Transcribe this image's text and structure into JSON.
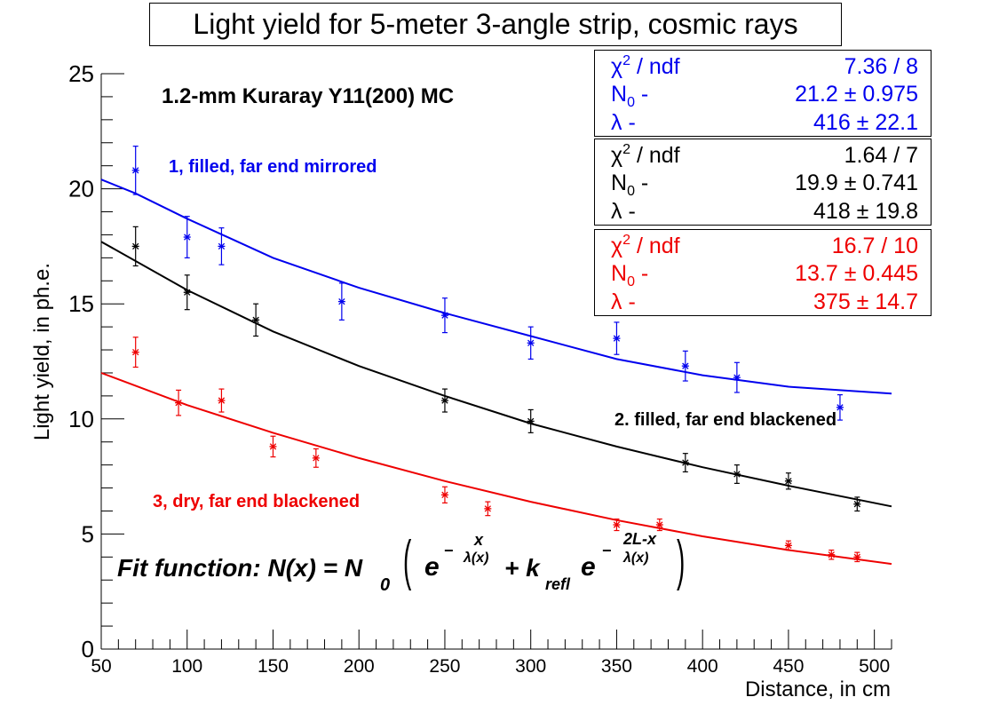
{
  "title": "Light yield for 5-meter 3-angle strip, cosmic rays",
  "annotations": {
    "material": "1.2-mm Kuraray Y11(200) MC",
    "curve1": "1, filled, far end mirrored",
    "curve2": "2. filled, far end blackened",
    "curve3": "3, dry, far end blackened"
  },
  "fit_formula": {
    "prefix": "Fit function: N(x) = N",
    "sub0": "0",
    "e1": "e",
    "minus1": "−",
    "frac1_num": "x",
    "frac1_den": "λ(x)",
    "plus_k": "+ k",
    "k_sub": "refl",
    "e2": "e",
    "minus2": "−",
    "frac2_num": "2L-x",
    "frac2_den": "λ(x)",
    "paren_open": "(",
    "paren_close": ")"
  },
  "stats": [
    {
      "color": "#0000ee",
      "chi_label": "χ",
      "chi_sup": "2",
      "chi_tail": " / ndf",
      "chi_value": "7.36 / 8",
      "n_label": "N",
      "n_sub": "0",
      "n_tail": " -",
      "n_value": "21.2 ± 0.975",
      "lambda_label": "λ -",
      "lambda_value": "416 ± 22.1"
    },
    {
      "color": "#000000",
      "chi_label": "χ",
      "chi_sup": "2",
      "chi_tail": " / ndf",
      "chi_value": "1.64 / 7",
      "n_label": "N",
      "n_sub": "0",
      "n_tail": " -",
      "n_value": "19.9 ± 0.741",
      "lambda_label": "λ -",
      "lambda_value": "418 ± 19.8"
    },
    {
      "color": "#ee0000",
      "chi_label": "χ",
      "chi_sup": "2",
      "chi_tail": " / ndf",
      "chi_value": "16.7 / 10",
      "n_label": "N",
      "n_sub": "0",
      "n_tail": " -",
      "n_value": "13.7 ± 0.445",
      "lambda_label": "λ -",
      "lambda_value": "375 ± 14.7"
    }
  ],
  "chart_data": {
    "type": "scatter",
    "title": "Light yield for 5-meter 3-angle strip, cosmic rays",
    "xlabel": "Distance, in cm",
    "ylabel": "Light yield, in ph.e.",
    "xlim": [
      50,
      510
    ],
    "ylim": [
      0,
      25
    ],
    "x_ticks": [
      50,
      100,
      150,
      200,
      250,
      300,
      350,
      400,
      450,
      500
    ],
    "y_ticks": [
      0,
      5,
      10,
      15,
      20,
      25
    ],
    "grid": false,
    "series": [
      {
        "name": "1, filled, far end mirrored",
        "color": "#0000ee",
        "points": [
          {
            "x": 70,
            "y": 20.8,
            "err": 1.05
          },
          {
            "x": 100,
            "y": 17.9,
            "err": 0.9
          },
          {
            "x": 120,
            "y": 17.5,
            "err": 0.8
          },
          {
            "x": 190,
            "y": 15.1,
            "err": 0.8
          },
          {
            "x": 250,
            "y": 14.5,
            "err": 0.75
          },
          {
            "x": 300,
            "y": 13.3,
            "err": 0.7
          },
          {
            "x": 350,
            "y": 13.5,
            "err": 0.7
          },
          {
            "x": 390,
            "y": 12.3,
            "err": 0.65
          },
          {
            "x": 420,
            "y": 11.8,
            "err": 0.65
          },
          {
            "x": 480,
            "y": 10.5,
            "err": 0.55
          }
        ],
        "fit": [
          [
            50,
            20.4
          ],
          [
            70,
            19.8
          ],
          [
            100,
            18.7
          ],
          [
            150,
            17.0
          ],
          [
            200,
            15.7
          ],
          [
            250,
            14.6
          ],
          [
            300,
            13.6
          ],
          [
            350,
            12.6
          ],
          [
            400,
            11.9
          ],
          [
            450,
            11.4
          ],
          [
            510,
            11.1
          ]
        ]
      },
      {
        "name": "2. filled, far end blackened",
        "color": "#000000",
        "points": [
          {
            "x": 70,
            "y": 17.5,
            "err": 0.85
          },
          {
            "x": 100,
            "y": 15.5,
            "err": 0.75
          },
          {
            "x": 140,
            "y": 14.3,
            "err": 0.7
          },
          {
            "x": 250,
            "y": 10.8,
            "err": 0.5
          },
          {
            "x": 300,
            "y": 9.9,
            "err": 0.5
          },
          {
            "x": 390,
            "y": 8.1,
            "err": 0.4
          },
          {
            "x": 420,
            "y": 7.6,
            "err": 0.4
          },
          {
            "x": 450,
            "y": 7.3,
            "err": 0.35
          },
          {
            "x": 490,
            "y": 6.3,
            "err": 0.3
          }
        ],
        "fit": [
          [
            50,
            17.7
          ],
          [
            100,
            15.6
          ],
          [
            150,
            13.8
          ],
          [
            200,
            12.3
          ],
          [
            250,
            11.0
          ],
          [
            300,
            9.8
          ],
          [
            350,
            8.8
          ],
          [
            400,
            7.9
          ],
          [
            450,
            7.1
          ],
          [
            510,
            6.2
          ]
        ]
      },
      {
        "name": "3, dry, far end blackened",
        "color": "#ee0000",
        "points": [
          {
            "x": 70,
            "y": 12.9,
            "err": 0.65
          },
          {
            "x": 95,
            "y": 10.7,
            "err": 0.55
          },
          {
            "x": 120,
            "y": 10.8,
            "err": 0.5
          },
          {
            "x": 150,
            "y": 8.8,
            "err": 0.45
          },
          {
            "x": 175,
            "y": 8.3,
            "err": 0.4
          },
          {
            "x": 250,
            "y": 6.7,
            "err": 0.35
          },
          {
            "x": 275,
            "y": 6.1,
            "err": 0.3
          },
          {
            "x": 350,
            "y": 5.4,
            "err": 0.25
          },
          {
            "x": 375,
            "y": 5.4,
            "err": 0.25
          },
          {
            "x": 450,
            "y": 4.5,
            "err": 0.2
          },
          {
            "x": 475,
            "y": 4.1,
            "err": 0.2
          },
          {
            "x": 490,
            "y": 4.0,
            "err": 0.2
          }
        ],
        "fit": [
          [
            50,
            12.0
          ],
          [
            100,
            10.6
          ],
          [
            150,
            9.4
          ],
          [
            200,
            8.3
          ],
          [
            250,
            7.3
          ],
          [
            300,
            6.4
          ],
          [
            350,
            5.6
          ],
          [
            400,
            4.9
          ],
          [
            450,
            4.3
          ],
          [
            510,
            3.7
          ]
        ]
      }
    ]
  }
}
